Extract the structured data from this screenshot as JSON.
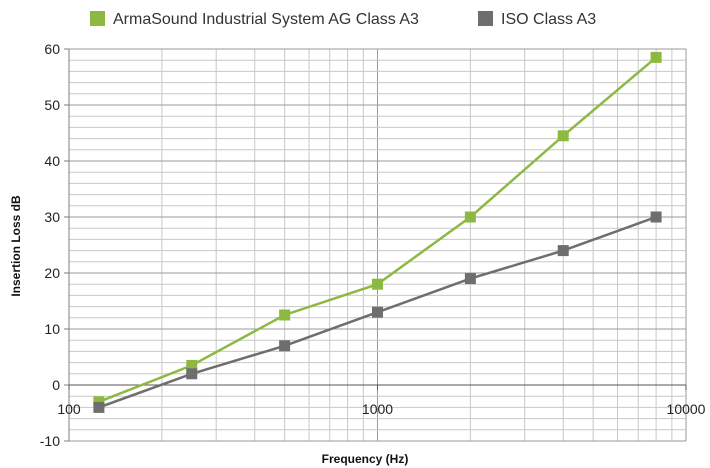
{
  "chart_data": {
    "type": "line",
    "xscale": "log",
    "xlim": [
      100,
      10000
    ],
    "ylim": [
      -10,
      60
    ],
    "xlabel": "Frequency (Hz)",
    "ylabel": "Insertion Loss dB",
    "legend_position": "top",
    "grid": true,
    "x_ticks": [
      {
        "value": 100,
        "label": "100"
      },
      {
        "value": 1000,
        "label": "1000"
      },
      {
        "value": 10000,
        "label": "10000"
      }
    ],
    "y_ticks": [
      {
        "value": -10,
        "label": "-10"
      },
      {
        "value": 0,
        "label": "0"
      },
      {
        "value": 10,
        "label": "10"
      },
      {
        "value": 20,
        "label": "20"
      },
      {
        "value": 30,
        "label": "30"
      },
      {
        "value": 40,
        "label": "40"
      },
      {
        "value": 50,
        "label": "50"
      },
      {
        "value": 60,
        "label": "60"
      }
    ],
    "x": [
      125,
      250,
      500,
      1000,
      2000,
      4000,
      8000
    ],
    "series": [
      {
        "name": "ArmaSound Industrial System AG Class A3",
        "color": "#8db943",
        "values": [
          -3,
          3.5,
          12.5,
          18,
          30,
          44.5,
          58.5
        ]
      },
      {
        "name": "ISO Class A3",
        "color": "#6e6e6e",
        "values": [
          -4,
          2,
          7,
          13,
          19,
          24,
          30
        ]
      }
    ],
    "grid_color": "#c8c8c8",
    "axis_color": "#7f7f7f"
  }
}
